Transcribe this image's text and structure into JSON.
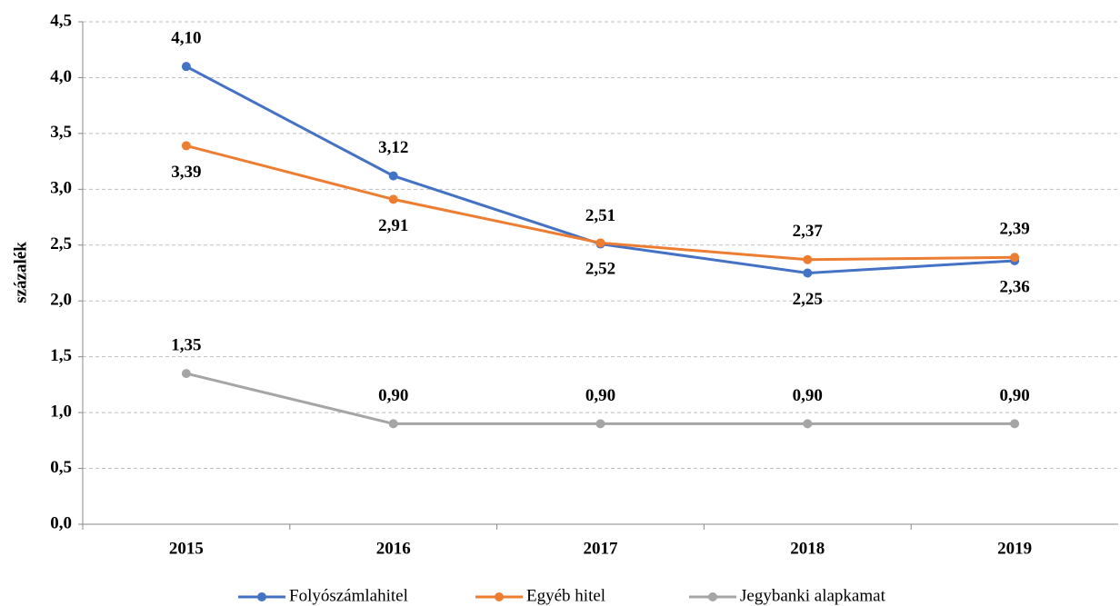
{
  "chart_data": {
    "type": "line",
    "y_axis_label": "százalék",
    "categories": [
      "2015",
      "2016",
      "2017",
      "2018",
      "2019"
    ],
    "series": [
      {
        "name": "Folyószámlahitel",
        "color": "#4472c4",
        "values": [
          4.1,
          3.12,
          2.51,
          2.25,
          2.36
        ],
        "value_labels": [
          "4,10",
          "3,12",
          "2,51",
          "2,25",
          "2,36"
        ]
      },
      {
        "name": "Egyéb hitel",
        "color": "#ed7d31",
        "values": [
          3.39,
          2.91,
          2.52,
          2.37,
          2.39
        ],
        "value_labels": [
          "3,39",
          "2,91",
          "2,52",
          "2,37",
          "2,39"
        ]
      },
      {
        "name": "Jegybanki alapkamat",
        "color": "#a5a5a5",
        "values": [
          1.35,
          0.9,
          0.9,
          0.9,
          0.9
        ],
        "value_labels": [
          "1,35",
          "0,90",
          "0,90",
          "0,90",
          "0,90"
        ]
      }
    ],
    "ylim": [
      0,
      4.5
    ],
    "yticks": [
      {
        "value": 0,
        "label": "0,0"
      },
      {
        "value": 0.5,
        "label": "0,5"
      },
      {
        "value": 1,
        "label": "1,0"
      },
      {
        "value": 1.5,
        "label": "1,5"
      },
      {
        "value": 2,
        "label": "2,0"
      },
      {
        "value": 2.5,
        "label": "2,5"
      },
      {
        "value": 3,
        "label": "3,0"
      },
      {
        "value": 3.5,
        "label": "3,5"
      },
      {
        "value": 4,
        "label": "4,0"
      },
      {
        "value": 4.5,
        "label": "4,5"
      }
    ],
    "grid": true,
    "legend": "bottom"
  }
}
